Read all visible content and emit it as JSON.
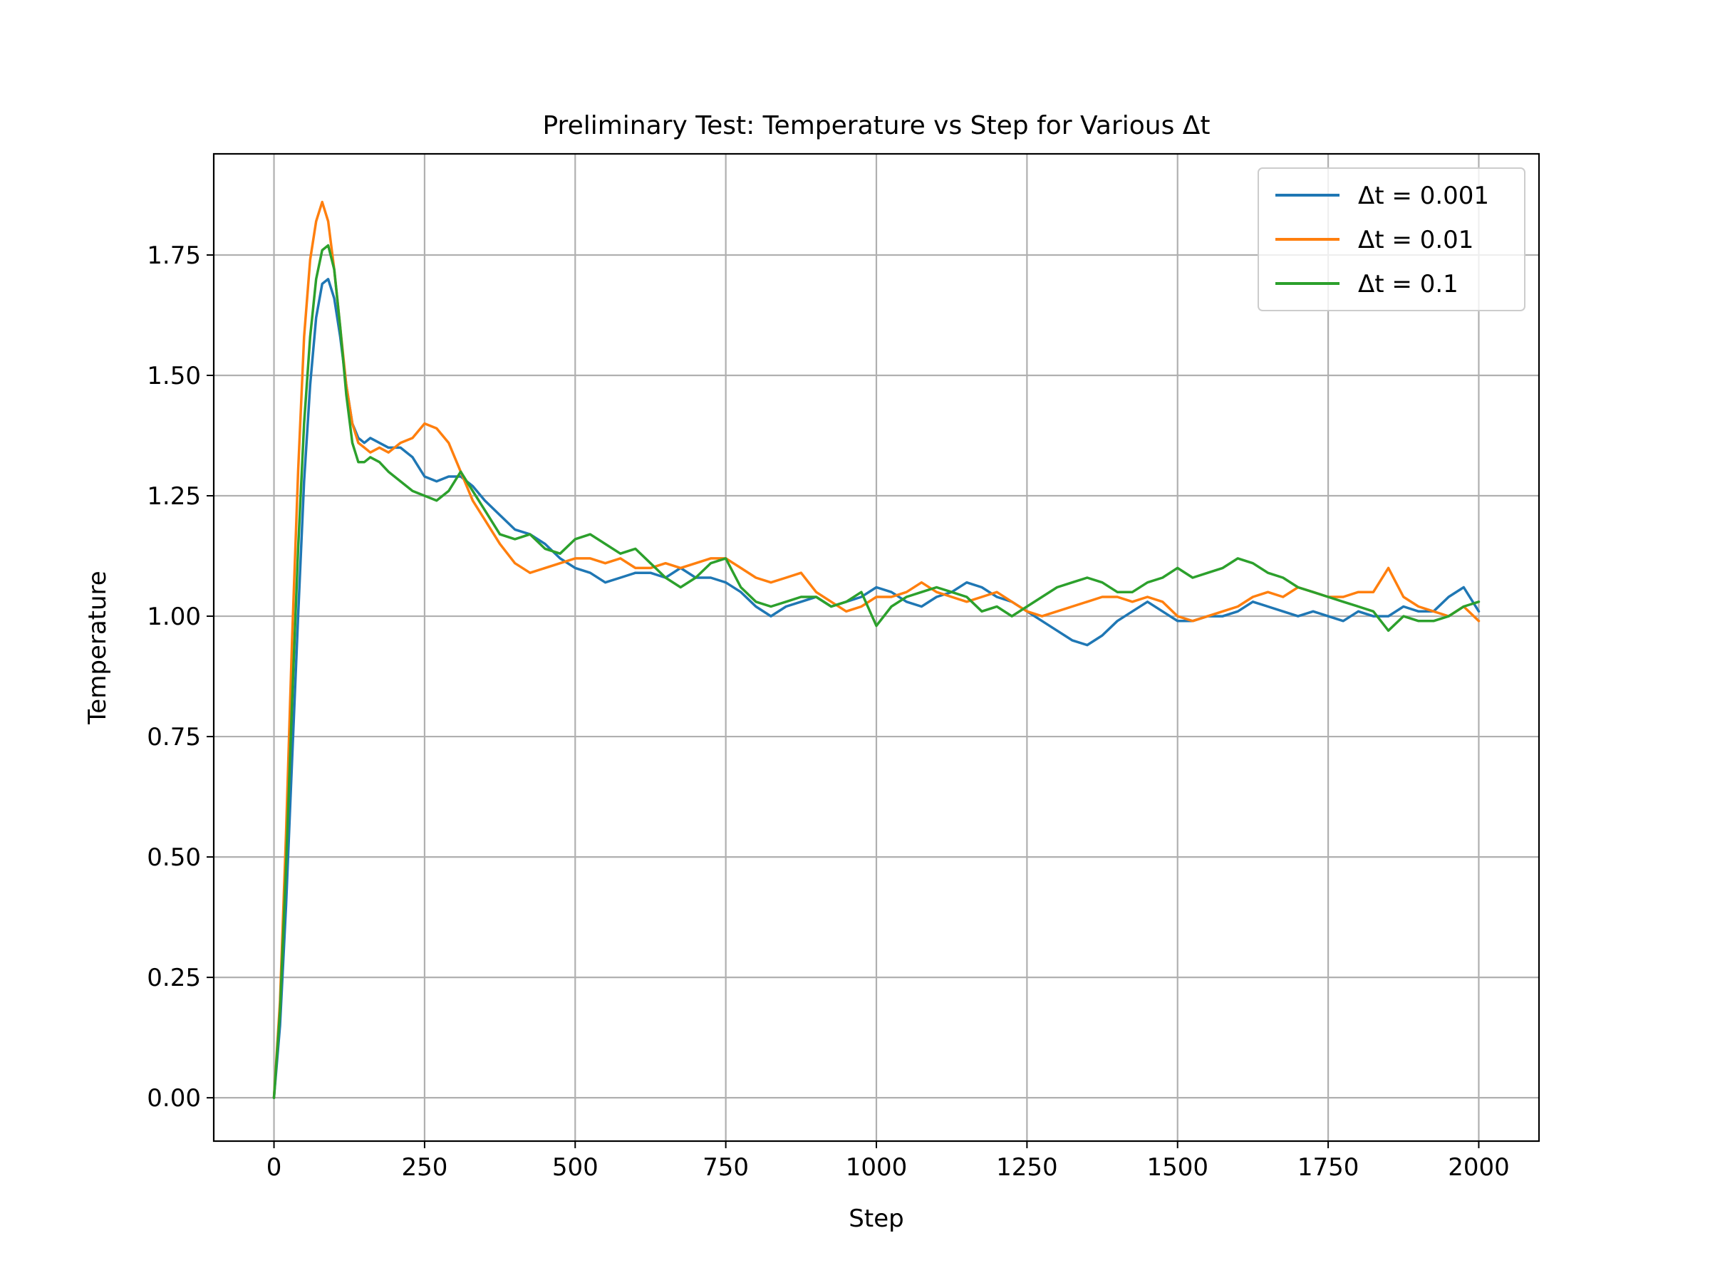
{
  "chart_data": {
    "type": "line",
    "title": "Preliminary Test: Temperature vs Step for Various Δt",
    "xlabel": "Step",
    "ylabel": "Temperature",
    "xlim": [
      -100,
      2100
    ],
    "ylim": [
      -0.09,
      1.96
    ],
    "xticks": [
      0,
      250,
      500,
      750,
      1000,
      1250,
      1500,
      1750,
      2000
    ],
    "xtick_labels": [
      "0",
      "250",
      "500",
      "750",
      "1000",
      "1250",
      "1500",
      "1750",
      "2000"
    ],
    "yticks": [
      0,
      0.25,
      0.5,
      0.75,
      1.0,
      1.25,
      1.5,
      1.75
    ],
    "ytick_labels": [
      "0.00",
      "0.25",
      "0.50",
      "0.75",
      "1.00",
      "1.25",
      "1.50",
      "1.75"
    ],
    "grid": true,
    "legend_position": "top-right",
    "series": [
      {
        "name": "Δt = 0.001",
        "color": "#1f77b4",
        "x": [
          0,
          10,
          20,
          30,
          40,
          50,
          60,
          70,
          80,
          90,
          100,
          110,
          120,
          130,
          140,
          150,
          160,
          175,
          190,
          210,
          230,
          250,
          270,
          290,
          310,
          330,
          350,
          375,
          400,
          425,
          450,
          475,
          500,
          525,
          550,
          575,
          600,
          625,
          650,
          675,
          700,
          725,
          750,
          775,
          800,
          825,
          850,
          875,
          900,
          925,
          950,
          975,
          1000,
          1025,
          1050,
          1075,
          1100,
          1125,
          1150,
          1175,
          1200,
          1225,
          1250,
          1275,
          1300,
          1325,
          1350,
          1375,
          1400,
          1425,
          1450,
          1475,
          1500,
          1525,
          1550,
          1575,
          1600,
          1625,
          1650,
          1675,
          1700,
          1725,
          1750,
          1775,
          1800,
          1825,
          1850,
          1875,
          1900,
          1925,
          1950,
          1975,
          2000
        ],
        "y": [
          0.0,
          0.15,
          0.4,
          0.7,
          1.0,
          1.28,
          1.48,
          1.62,
          1.69,
          1.7,
          1.66,
          1.58,
          1.48,
          1.4,
          1.37,
          1.36,
          1.37,
          1.36,
          1.35,
          1.35,
          1.33,
          1.29,
          1.28,
          1.29,
          1.29,
          1.27,
          1.24,
          1.21,
          1.18,
          1.17,
          1.15,
          1.12,
          1.1,
          1.09,
          1.07,
          1.08,
          1.09,
          1.09,
          1.08,
          1.1,
          1.08,
          1.08,
          1.07,
          1.05,
          1.02,
          1.0,
          1.02,
          1.03,
          1.04,
          1.02,
          1.03,
          1.04,
          1.06,
          1.05,
          1.03,
          1.02,
          1.04,
          1.05,
          1.07,
          1.06,
          1.04,
          1.03,
          1.01,
          0.99,
          0.97,
          0.95,
          0.94,
          0.96,
          0.99,
          1.01,
          1.03,
          1.01,
          0.99,
          0.99,
          1.0,
          1.0,
          1.01,
          1.03,
          1.02,
          1.01,
          1.0,
          1.01,
          1.0,
          0.99,
          1.01,
          1.0,
          1.0,
          1.02,
          1.01,
          1.01,
          1.04,
          1.06,
          1.01
        ]
      },
      {
        "name": "Δt = 0.01",
        "color": "#ff7f0e",
        "x": [
          0,
          10,
          20,
          30,
          40,
          50,
          60,
          70,
          80,
          90,
          100,
          110,
          120,
          130,
          140,
          150,
          160,
          175,
          190,
          210,
          230,
          250,
          270,
          290,
          310,
          330,
          350,
          375,
          400,
          425,
          450,
          475,
          500,
          525,
          550,
          575,
          600,
          625,
          650,
          675,
          700,
          725,
          750,
          775,
          800,
          825,
          850,
          875,
          900,
          925,
          950,
          975,
          1000,
          1025,
          1050,
          1075,
          1100,
          1125,
          1150,
          1175,
          1200,
          1225,
          1250,
          1275,
          1300,
          1325,
          1350,
          1375,
          1400,
          1425,
          1450,
          1475,
          1500,
          1525,
          1550,
          1575,
          1600,
          1625,
          1650,
          1675,
          1700,
          1725,
          1750,
          1775,
          1800,
          1825,
          1850,
          1875,
          1900,
          1925,
          1950,
          1975,
          2000
        ],
        "y": [
          0.0,
          0.2,
          0.55,
          0.95,
          1.3,
          1.58,
          1.74,
          1.82,
          1.86,
          1.82,
          1.72,
          1.6,
          1.48,
          1.4,
          1.36,
          1.35,
          1.34,
          1.35,
          1.34,
          1.36,
          1.37,
          1.4,
          1.39,
          1.36,
          1.3,
          1.24,
          1.2,
          1.15,
          1.11,
          1.09,
          1.1,
          1.11,
          1.12,
          1.12,
          1.11,
          1.12,
          1.1,
          1.1,
          1.11,
          1.1,
          1.11,
          1.12,
          1.12,
          1.1,
          1.08,
          1.07,
          1.08,
          1.09,
          1.05,
          1.03,
          1.01,
          1.02,
          1.04,
          1.04,
          1.05,
          1.07,
          1.05,
          1.04,
          1.03,
          1.04,
          1.05,
          1.03,
          1.01,
          1.0,
          1.01,
          1.02,
          1.03,
          1.04,
          1.04,
          1.03,
          1.04,
          1.03,
          1.0,
          0.99,
          1.0,
          1.01,
          1.02,
          1.04,
          1.05,
          1.04,
          1.06,
          1.05,
          1.04,
          1.04,
          1.05,
          1.05,
          1.1,
          1.04,
          1.02,
          1.01,
          1.0,
          1.02,
          0.99
        ]
      },
      {
        "name": "Δt = 0.1",
        "color": "#2ca02c",
        "x": [
          0,
          10,
          20,
          30,
          40,
          50,
          60,
          70,
          80,
          90,
          100,
          110,
          120,
          130,
          140,
          150,
          160,
          175,
          190,
          210,
          230,
          250,
          270,
          290,
          310,
          330,
          350,
          375,
          400,
          425,
          450,
          475,
          500,
          525,
          550,
          575,
          600,
          625,
          650,
          675,
          700,
          725,
          750,
          775,
          800,
          825,
          850,
          875,
          900,
          925,
          950,
          975,
          1000,
          1025,
          1050,
          1075,
          1100,
          1125,
          1150,
          1175,
          1200,
          1225,
          1250,
          1275,
          1300,
          1325,
          1350,
          1375,
          1400,
          1425,
          1450,
          1475,
          1500,
          1525,
          1550,
          1575,
          1600,
          1625,
          1650,
          1675,
          1700,
          1725,
          1750,
          1775,
          1800,
          1825,
          1850,
          1875,
          1900,
          1925,
          1950,
          1975,
          2000
        ],
        "y": [
          0.0,
          0.18,
          0.48,
          0.82,
          1.14,
          1.4,
          1.58,
          1.7,
          1.76,
          1.77,
          1.72,
          1.6,
          1.46,
          1.36,
          1.32,
          1.32,
          1.33,
          1.32,
          1.3,
          1.28,
          1.26,
          1.25,
          1.24,
          1.26,
          1.3,
          1.26,
          1.22,
          1.17,
          1.16,
          1.17,
          1.14,
          1.13,
          1.16,
          1.17,
          1.15,
          1.13,
          1.14,
          1.11,
          1.08,
          1.06,
          1.08,
          1.11,
          1.12,
          1.06,
          1.03,
          1.02,
          1.03,
          1.04,
          1.04,
          1.02,
          1.03,
          1.05,
          0.98,
          1.02,
          1.04,
          1.05,
          1.06,
          1.05,
          1.04,
          1.01,
          1.02,
          1.0,
          1.02,
          1.04,
          1.06,
          1.07,
          1.08,
          1.07,
          1.05,
          1.05,
          1.07,
          1.08,
          1.1,
          1.08,
          1.09,
          1.1,
          1.12,
          1.11,
          1.09,
          1.08,
          1.06,
          1.05,
          1.04,
          1.03,
          1.02,
          1.01,
          0.97,
          1.0,
          0.99,
          0.99,
          1.0,
          1.02,
          1.03
        ]
      }
    ]
  }
}
